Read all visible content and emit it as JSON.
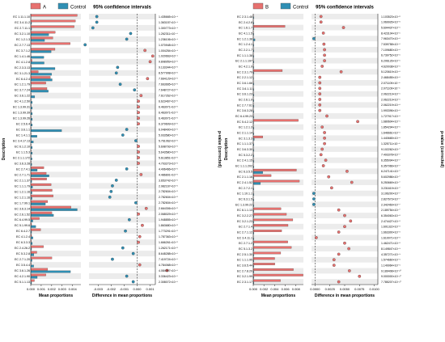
{
  "colors": {
    "A": "#e7716f",
    "B": "#e7716f",
    "control": "#2f8fb4",
    "band": "#ececec",
    "ci": "#333333"
  },
  "panels": [
    {
      "legend": {
        "sample": "A",
        "control": "Control"
      },
      "ci_title": "95% confidence intervals",
      "xlabel_left": "Mean proportions",
      "xlabel_right": "Difference in mean proportions",
      "ylabel": "Description",
      "pvalue_label": "p-value (corrected)",
      "bar_ticks": [
        "0.000",
        "0.001",
        "0.002",
        "0.003",
        "0.004"
      ],
      "diff_ticks": [
        "-0.003",
        "-0.002",
        "-0.001",
        "0.000",
        "0.001"
      ]
    },
    {
      "legend": {
        "sample": "B",
        "control": "Control"
      },
      "ci_title": "95% confidence intervals",
      "xlabel_left": "Mean proportions",
      "xlabel_right": "Difference in mean proportions",
      "ylabel": "Description",
      "pvalue_label": "p-value (corrected)",
      "bar_ticks": [
        "0.000",
        "0.002",
        "0.004",
        "0.006",
        "0.008"
      ],
      "diff_ticks": [
        "0.0000",
        "0.0025",
        "0.0050",
        "0.0075",
        "0.0100"
      ]
    }
  ],
  "chart_data": [
    {
      "type": "bar",
      "xlim": [
        0,
        0.0048
      ],
      "diff_xlim": [
        -0.0037,
        0.0014
      ],
      "categories": [
        "EC 1.11.1.10",
        "EC 3.4.11.2",
        "EC 2.7.11.1",
        "EC 3.2.1.10",
        "EC 1.2.1.3",
        "EC 2.7.7.13",
        "EC 3.7.1.2",
        "EC 1.4.1.46",
        "EC 4.1.2.8",
        "EC 2.3.3.13",
        "EC 3.1.21.3",
        "EC 6.4.2.4",
        "EC 1.2.1.79",
        "EC 3.7.7.24",
        "EC 3.6.1.22",
        "EC 4.1.2.50",
        "EC 1.3.99.31",
        "EC 1.3.99.39",
        "EC 1.3.99.26",
        "EC 2.5.6.4",
        "EC 3.6.1.1",
        "EC 1.4.1.1",
        "EC 3.4.17.13",
        "EC 6.1.2.10",
        "EC 1.1.5.3",
        "EC 2.1.1.172",
        "EC 3.6.3.28",
        "EC 2.7.4.1",
        "EC 2.7.1.71",
        "EC 2.1.1.37",
        "EC 1.1.1.79",
        "EC 1.2.1.16",
        "EC 1.2.1.16",
        "EC 1.7.99.1",
        "EC 3.6.3.14",
        "EC 2.6.1.52",
        "EC 6.4.99.5",
        "EC 5.1.99.6",
        "EC 6.4.2.7",
        "EC 4.1.2.4",
        "EC 6.3.3.3",
        "EC 2.4.26.2",
        "EC 5.3.2.8",
        "EC 2.7.1.20",
        "EC 3.5.4.4",
        "EC 3.6.1.26",
        "EC 4.2.1.90",
        "EC 5.1.1.13"
      ],
      "series": [
        {
          "name": "A",
          "values": [
            0.00445,
            0.00428,
            0.00415,
            0.00235,
            0.00212,
            0.00378,
            0.00232,
            3e-05,
            0.00012,
            6e-05,
            0.00072,
            0.00188,
            0.00144,
            0.00155,
            4e-05,
            4e-05,
            4e-05,
            4e-05,
            4e-05,
            4e-05,
            4e-05,
            4e-05,
            4e-05,
            4e-05,
            4e-05,
            4e-05,
            4e-05,
            0.00125,
            0.00148,
            0.00152,
            0.00195,
            0.00205,
            0.00215,
            0.00162,
            0.00385,
            0.00202,
            0.00082,
            8e-05,
            0.00095,
            8e-05,
            5e-05,
            0.00122,
            0.00058,
            0.00202,
            4e-05,
            0.00162,
            0.00145,
            0.00035
          ]
        },
        {
          "name": "Control",
          "values": [
            2e-05,
            8e-05,
            8e-05,
            0.00172,
            0.00132,
            2e-05,
            0.00195,
            0.00125,
            0.00128,
            0.00232,
            0.002,
            0.00205,
            4e-05,
            0.00168,
            0.00038,
            0.00015,
            0.00015,
            0.00015,
            0.00015,
            0.00015,
            0.00295,
            0.0006,
            0.00025,
            0.00015,
            0.00015,
            0.00012,
            0.0001,
            0.00062,
            0.00175,
            0.0001,
            0.00018,
            0.00012,
            0.00012,
            0.0014,
            0.00445,
            0.00218,
            0.0002,
            0.00048,
            8e-05,
            0.00022,
            0.00015,
            8e-05,
            0.0003,
            0.00012,
            0.00028,
            0.0038,
            0.00062,
            8e-05
          ]
        }
      ],
      "differences": [
        -0.0031,
        -0.0031,
        -0.0034,
        -0.0005,
        -0.0008,
        -0.004,
        0.0006,
        0.0012,
        0.001,
        -0.0015,
        -0.0016,
        0.0008,
        -0.0013,
        -0.0002,
        0.0003,
        0.0001,
        0.0001,
        0.0001,
        0.0001,
        0.0001,
        -0.0008,
        -0.0011,
        -0.0001,
        0.0001,
        0.0001,
        0.0001,
        0.0001,
        -0.0008,
        0.0003,
        -0.0016,
        -0.0019,
        -0.002,
        -0.0021,
        -0.0001,
        0.0007,
        0.0001,
        -0.0006,
        0.0004,
        -0.0009,
        0.0002,
        0.0001,
        -0.0011,
        -0.0003,
        -0.0019,
        0.0002,
        0.0023,
        -0.0008,
        -0.0003
      ],
      "pvalues": [
        "1.435665×10⁻⁴",
        "1.363157×10⁻⁴",
        "1.300773×10⁻⁴",
        "1.262311×10⁻⁴",
        "1.236106×10⁻⁴",
        "1.070948×10⁻⁴",
        "1.004254×10⁻⁴",
        "1.020663×10⁻⁴",
        "9.898959×10⁻⁵",
        "9.133344×10⁻⁵",
        "8.577908×10⁻⁵",
        "7.664129×10⁻⁵",
        "7.663665×10⁻⁵",
        "7.648727×10⁻⁵",
        "7.617262×10⁻⁵",
        "6.623467×10⁻⁵",
        "6.463071×10⁻⁵",
        "6.463071×10⁻⁵",
        "6.463071×10⁻⁵",
        "6.379609×10⁻⁵",
        "6.048400×10⁻⁵",
        "5.933580×10⁻⁵",
        "5.761062×10⁻⁵",
        "5.698793×10⁻⁵",
        "5.643580×10⁻⁵",
        "5.613851×10⁻⁵",
        "4.703273×10⁻⁵",
        "4.496466×10⁻⁵",
        "4.486891×10⁻⁵",
        "3.653742×10⁻⁵",
        "2.982167×10⁻⁵",
        "2.782604×10⁻⁵",
        "2.782604×10⁻⁵",
        "2.782604×10⁻⁵",
        "2.664306×10⁻⁵",
        "2.068029×10⁻⁵",
        "1.948855×10⁻⁵",
        "1.863680×10⁻⁵",
        "1.773291×10⁻⁵",
        "1.787363×10⁻⁵",
        "1.666261×10⁻⁵",
        "1.262171×10⁻⁵",
        "8.648288×10⁻⁶",
        "7.419724×10⁻⁶",
        "4.784068×10⁻⁶",
        "4.084097×10⁻⁶",
        "3.336423×10⁻⁶",
        "2.308072×10⁻⁶"
      ]
    },
    {
      "type": "bar",
      "xlim": [
        0,
        0.0094
      ],
      "diff_xlim": [
        -0.0006,
        0.0106
      ],
      "categories": [
        "EC 2.3.1.48",
        "EC 2.4.2.8",
        "EC 1.6.1.7",
        "EC 4.1.1.5",
        "EC 1.2.1.38",
        "EC 1.2.4.1",
        "EC 2.2.1.7",
        "EC 1.1.1.38",
        "EC 2.1.1.197",
        "EC 4.2.1.9",
        "EC 2.3.1.79",
        "EC 2.2.1.12",
        "EC 3.6.1.66",
        "EC 3.6.1.11",
        "EC 3.6.1.23",
        "EC 2.6.1.9",
        "EC 2.7.7.61",
        "EC 3.6.3.28",
        "EC 6.4.99.23",
        "EC 5.4.2.12",
        "EC 1.2.1.3",
        "EC 2.1.1.14",
        "EC 3.1.3.3",
        "EC 1.1.1.37",
        "EC 3.6.3.30",
        "EC 5.3.2.2",
        "EC 2.4.1.15",
        "EC 1.1.1.202",
        "EC 6.3.5.5",
        "EC 2.1.1.16",
        "EC 2.4.1.52",
        "EC 2.7.2.1",
        "EC 1.10.1.1",
        "EC 6.3.1.5",
        "EC 1.3.99.22",
        "EC 6.1.1.13",
        "EC 3.2.2.27",
        "EC 3.2.1.23",
        "EC 2.7.1.4",
        "EC 2.7.1.12",
        "EC 3.4.11.1",
        "EC 2.7.1.2",
        "EC 5.1.3.2",
        "EC 2.5.1.30",
        "EC 1.1.1.95",
        "EC 3.6.5.44",
        "EC 2.7.8.20",
        "EC 3.2.1.99",
        "EC 2.3.1.17"
      ],
      "series": [
        {
          "name": "B",
          "values": [
            4e-05,
            4e-05,
            0.00595,
            4e-05,
            4e-05,
            4e-05,
            4e-05,
            4e-05,
            4e-05,
            4e-05,
            0.00545,
            4e-05,
            4e-05,
            4e-05,
            4e-05,
            4e-05,
            4e-05,
            4e-05,
            4e-05,
            0.00845,
            4e-05,
            4e-05,
            0.0018,
            4e-05,
            4e-05,
            4e-05,
            4e-05,
            4e-05,
            0.0081,
            0.00335,
            0.00865,
            4e-05,
            4e-05,
            4e-05,
            4e-05,
            0.0052,
            0.00622,
            0.00742,
            0.00652,
            0.00532,
            4e-05,
            0.00648,
            0.00715,
            0.00515,
            0.00402,
            0.00405,
            0.00752,
            0.00935,
            0.0051
          ]
        },
        {
          "name": "Control",
          "values": [
            0.00012,
            0.00012,
            0.0001,
            0.0001,
            0.00032,
            0.00012,
            0.00012,
            0.00012,
            0.00012,
            0.0001,
            0.00012,
            8e-05,
            0.00012,
            0.00012,
            0.00012,
            0.00012,
            0.00012,
            0.00012,
            0.00012,
            8e-05,
            0.00012,
            0.00012,
            0.0002,
            0.00012,
            0.00012,
            0.00012,
            0.00012,
            0.00012,
            0.0018,
            0.00012,
            0.00135,
            0.00012,
            0.00012,
            0.00012,
            0.00012,
            0.00012,
            0.00012,
            0.00012,
            0.00012,
            0.00012,
            0.00012,
            0.00012,
            0.00012,
            0.00012,
            0.00012,
            0.00012,
            0.00012,
            0.00012,
            0.00012
          ]
        }
      ],
      "differences": [
        0.001,
        0.001,
        0.0048,
        0.0014,
        -0.0002,
        0.0015,
        0.0016,
        0.0016,
        0.0016,
        0.0012,
        0.0044,
        0.0008,
        0.0008,
        0.0008,
        0.0008,
        0.0008,
        0.0008,
        0.0008,
        0.002,
        0.0072,
        0.0012,
        0.0016,
        0.0016,
        0.0016,
        0.0012,
        0.001,
        0.0018,
        0.0014,
        0.0054,
        0.0023,
        0.0062,
        0.0028,
        -0.0002,
        -0.0002,
        -0.0002,
        0.004,
        0.005,
        0.006,
        0.005,
        0.004,
        0.0002,
        0.005,
        0.0057,
        0.004,
        0.0032,
        0.0032,
        0.0058,
        0.0075,
        0.004
      ],
      "pvalues": [
        "1.103523×10⁻⁵",
        "1.069926×10⁻⁵",
        "5.694437×10⁻⁶",
        "8.423104×10⁻⁶",
        "7.963470×10⁻⁶",
        "7.539758×10⁻⁶",
        "7.109680×10⁻⁶",
        "6.739752×10⁻⁶",
        "6.206126×10⁻⁶",
        "4.620038×10⁻⁶",
        "5.120619×10⁻⁶",
        "2.468455×10⁻⁶",
        "2.071109×10⁻⁶",
        "2.071109×10⁻⁶",
        "2.062219×10⁻⁶",
        "2.062219×10⁻⁶",
        "2.062219×10⁻⁶",
        "1.993396×10⁻⁶",
        "1.727917×10⁻⁶",
        "1.680604×10⁻⁶",
        "1.854294×10⁻⁶",
        "1.646661×10⁻⁶",
        "1.440665×10⁻⁶",
        "1.325711×10⁻⁶",
        "9.102262×10⁻⁷",
        "7.493378×10⁻⁷",
        "6.355094×10⁻⁷",
        "6.357066×10⁻⁷",
        "6.247141×10⁻⁷",
        "5.602986×10⁻⁷",
        "5.250669×10⁻⁷",
        "3.231619×10⁻⁷",
        "3.196200×10⁻⁷",
        "2.827673×10⁻⁷",
        "2.342469×10⁻⁷",
        "2.189754×10⁻⁷",
        "6.354063×10⁻⁸",
        "2.474427×10⁻⁸",
        "1.601322×10⁻⁸",
        "1.663300×10⁻⁸",
        "1.610071×10⁻⁸",
        "1.462471×10⁻⁸",
        "8.149847×10⁻⁹",
        "4.357271×10⁻⁹",
        "1.574660×10⁻⁹",
        "1.149964×10⁻⁹",
        "9.189408×10⁻¹⁰",
        "9.000000×10⁻¹⁰",
        "7.785207×10⁻¹⁰"
      ]
    }
  ]
}
